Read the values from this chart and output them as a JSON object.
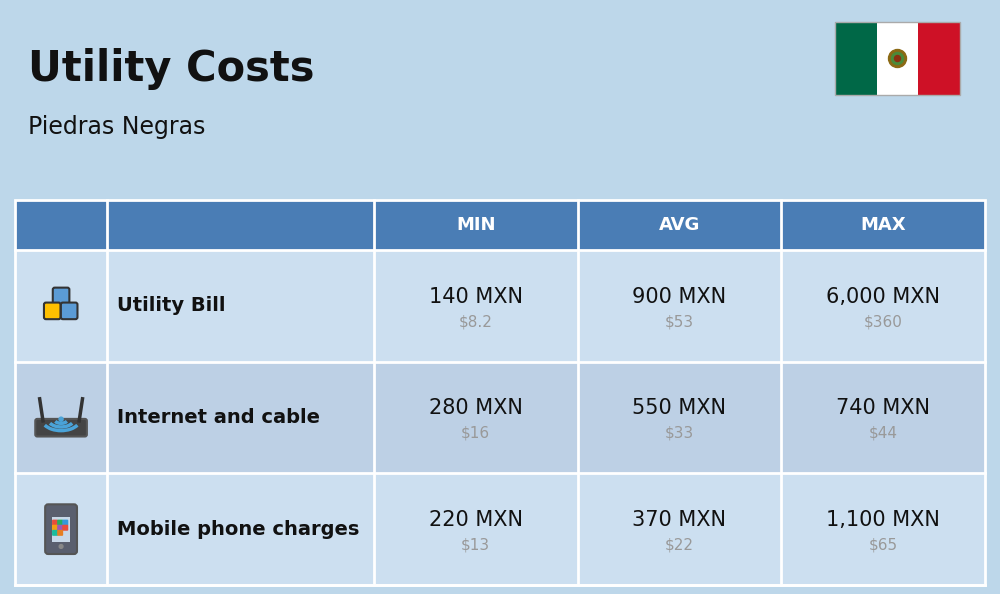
{
  "title": "Utility Costs",
  "subtitle": "Piedras Negras",
  "background_color": "#bdd7ea",
  "header_bg_color": "#4a7db5",
  "header_text_color": "#ffffff",
  "row_bg_color_odd": "#ccdff0",
  "row_bg_color_even": "#bdd0e5",
  "table_border_color": "#ffffff",
  "rows": [
    {
      "label": "Utility Bill",
      "min_mxn": "140 MXN",
      "min_usd": "$8.2",
      "avg_mxn": "900 MXN",
      "avg_usd": "$53",
      "max_mxn": "6,000 MXN",
      "max_usd": "$360"
    },
    {
      "label": "Internet and cable",
      "min_mxn": "280 MXN",
      "min_usd": "$16",
      "avg_mxn": "550 MXN",
      "avg_usd": "$33",
      "max_mxn": "740 MXN",
      "max_usd": "$44"
    },
    {
      "label": "Mobile phone charges",
      "min_mxn": "220 MXN",
      "min_usd": "$13",
      "avg_mxn": "370 MXN",
      "avg_usd": "$22",
      "max_mxn": "1,100 MXN",
      "max_usd": "$65"
    }
  ],
  "mxn_fontsize": 15,
  "usd_fontsize": 11,
  "label_fontsize": 14,
  "header_fontsize": 13,
  "title_fontsize": 30,
  "subtitle_fontsize": 17,
  "usd_color": "#999999",
  "text_dark": "#111111",
  "flag_green": "#006847",
  "flag_white": "#ffffff",
  "flag_red": "#ce1126"
}
